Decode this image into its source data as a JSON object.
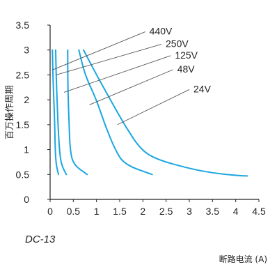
{
  "chart_data": {
    "type": "line",
    "subtitle": "DC-13",
    "xlabel": "断路电流 (A)",
    "ylabel": "百万操作周期",
    "xlim": [
      0,
      4.5
    ],
    "ylim": [
      0,
      3.5
    ],
    "x_ticks": [
      "0",
      "0.5",
      "1",
      "1.5",
      "2",
      "2.5",
      "3",
      "3.5",
      "4",
      "4.5"
    ],
    "y_ticks": [
      "0",
      "0.5",
      "1",
      "1.5",
      "2",
      "2.5",
      "3",
      "3.5"
    ],
    "grid": false,
    "line_color": "#1aa6e0",
    "series": [
      {
        "name": "440V",
        "points": [
          [
            0.05,
            3.0
          ],
          [
            0.06,
            2.5
          ],
          [
            0.08,
            2.0
          ],
          [
            0.1,
            1.5
          ],
          [
            0.11,
            1.0
          ],
          [
            0.13,
            0.7
          ],
          [
            0.18,
            0.5
          ]
        ],
        "label_at": [
          0.05,
          2.6
        ]
      },
      {
        "name": "250V",
        "points": [
          [
            0.12,
            3.0
          ],
          [
            0.13,
            2.5
          ],
          [
            0.15,
            2.0
          ],
          [
            0.17,
            1.5
          ],
          [
            0.2,
            1.0
          ],
          [
            0.24,
            0.7
          ],
          [
            0.35,
            0.5
          ]
        ],
        "label_at": [
          0.13,
          2.5
        ]
      },
      {
        "name": "125V",
        "points": [
          [
            0.38,
            3.0
          ],
          [
            0.38,
            2.5
          ],
          [
            0.39,
            2.0
          ],
          [
            0.41,
            1.5
          ],
          [
            0.43,
            1.0
          ],
          [
            0.5,
            0.7
          ],
          [
            0.8,
            0.5
          ]
        ],
        "label_at": [
          0.3,
          2.15
        ]
      },
      {
        "name": "48V",
        "points": [
          [
            0.62,
            3.0
          ],
          [
            0.75,
            2.5
          ],
          [
            1.0,
            2.0
          ],
          [
            1.18,
            1.5
          ],
          [
            1.4,
            1.0
          ],
          [
            1.6,
            0.7
          ],
          [
            2.2,
            0.5
          ]
        ],
        "label_at": [
          0.85,
          1.9
        ]
      },
      {
        "name": "24V",
        "points": [
          [
            0.72,
            3.0
          ],
          [
            1.0,
            2.5
          ],
          [
            1.3,
            2.0
          ],
          [
            1.6,
            1.5
          ],
          [
            1.95,
            1.0
          ],
          [
            2.3,
            0.8
          ],
          [
            3.0,
            0.62
          ],
          [
            3.5,
            0.53
          ],
          [
            4.0,
            0.48
          ],
          [
            4.25,
            0.47
          ]
        ],
        "label_at": [
          1.45,
          1.5
        ]
      }
    ],
    "legend_labels": [
      {
        "name": "440V",
        "box_at": [
          2.05,
          3.38
        ]
      },
      {
        "name": "250V",
        "box_at": [
          2.4,
          3.13
        ]
      },
      {
        "name": "125V",
        "box_at": [
          2.6,
          2.9
        ]
      },
      {
        "name": "48V",
        "box_at": [
          2.65,
          2.62
        ]
      },
      {
        "name": "24V",
        "box_at": [
          3.0,
          2.22
        ]
      }
    ]
  }
}
